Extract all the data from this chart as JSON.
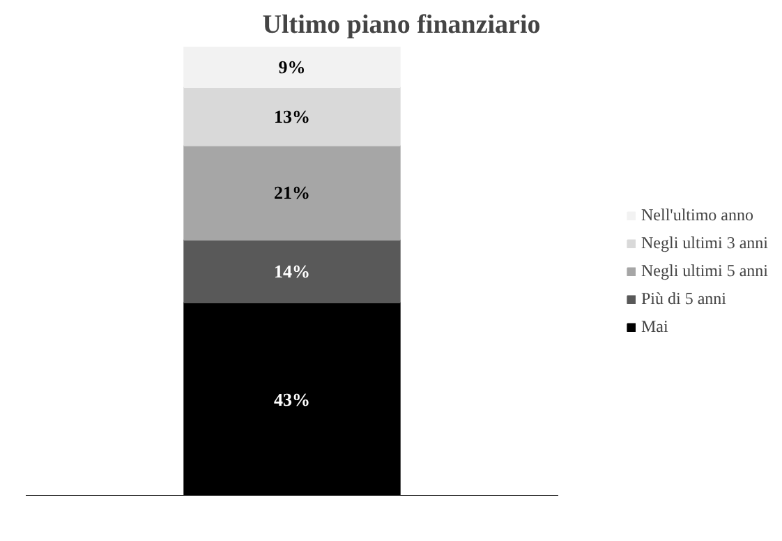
{
  "chart_data": {
    "type": "bar",
    "title": "Ultimo piano finanziario",
    "categories": [
      null
    ],
    "stacked": true,
    "tick_labels": false,
    "legend": "right",
    "series": [
      {
        "name": "Mai",
        "color": "#000000",
        "values": [
          43
        ],
        "value_labels": [
          "43%"
        ]
      },
      {
        "name": "Più di 5 anni",
        "color": "#595959",
        "values": [
          14
        ],
        "value_labels": [
          "14%"
        ]
      },
      {
        "name": "Negli ultimi 5 anni",
        "color": "#a6a6a6",
        "values": [
          21
        ],
        "value_labels": [
          "21%"
        ]
      },
      {
        "name": "Negli ultimi 3 anni",
        "color": "#d9d9d9",
        "values": [
          13
        ],
        "value_labels": [
          "13%"
        ]
      },
      {
        "name": "Nell'ultimo anno",
        "color": "#f2f2f2",
        "values": [
          9
        ],
        "value_labels": [
          "9%"
        ]
      }
    ]
  }
}
